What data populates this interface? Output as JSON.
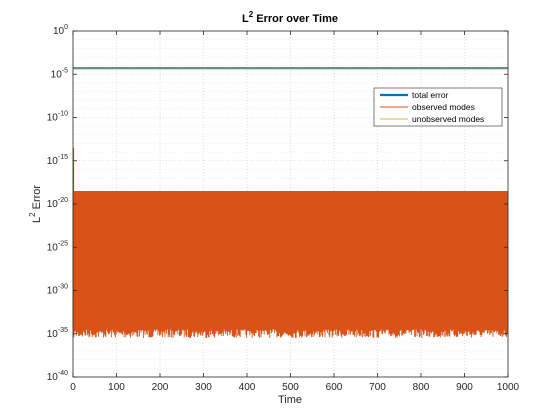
{
  "chart_data": {
    "type": "line",
    "title": "L2 Error over Time",
    "title_parts": {
      "base": "L",
      "sup": "2",
      "rest": " Error over Time"
    },
    "xlabel": "Time",
    "ylabel": "L2 Error",
    "ylabel_parts": {
      "base": "L",
      "sup": "2",
      "rest": " Error"
    },
    "xlim": [
      0,
      1000
    ],
    "ylim_log10": [
      -40,
      0
    ],
    "y_scale": "log",
    "grid": true,
    "minor_grid": true,
    "legend_position": "top-right",
    "x_ticks": [
      0,
      100,
      200,
      300,
      400,
      500,
      600,
      700,
      800,
      900,
      1000
    ],
    "y_ticks": [
      {
        "base": "10",
        "exp": "0"
      },
      {
        "base": "10",
        "exp": "-5"
      },
      {
        "base": "10",
        "exp": "-10"
      },
      {
        "base": "10",
        "exp": "-15"
      },
      {
        "base": "10",
        "exp": "-20"
      },
      {
        "base": "10",
        "exp": "-25"
      },
      {
        "base": "10",
        "exp": "-30"
      },
      {
        "base": "10",
        "exp": "-35"
      },
      {
        "base": "10",
        "exp": "-40"
      }
    ],
    "y_tick_exponents": [
      0,
      -5,
      -10,
      -15,
      -20,
      -25,
      -30,
      -35,
      -40
    ],
    "series": [
      {
        "name": "total error",
        "color": "#0072BD",
        "style": "constant",
        "x": [
          0,
          1000
        ],
        "y_log10": [
          -4.3,
          -4.3
        ]
      },
      {
        "name": "observed modes",
        "color": "#D95319",
        "style": "oscillating band",
        "x_range": [
          0,
          1000
        ],
        "upper_log10": -18.5,
        "lower_log10": -34.5,
        "lower_min_log10": -35.5,
        "initial_spike_log10": -13.5
      },
      {
        "name": "unobserved modes",
        "color": "#EDB120",
        "style": "constant",
        "x": [
          0,
          1000
        ],
        "y_log10": [
          -4.4,
          -4.4
        ]
      }
    ]
  },
  "colors": {
    "axis": "#262626",
    "grid": "#dcdcdc",
    "background": "#ffffff"
  }
}
